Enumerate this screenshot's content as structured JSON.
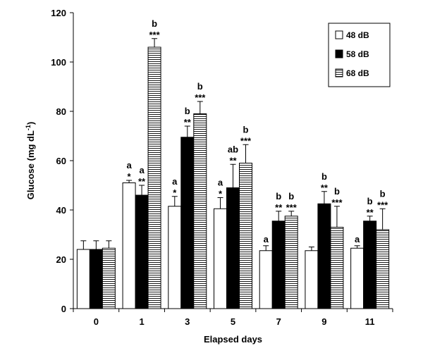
{
  "chart_data": {
    "type": "bar",
    "title": "",
    "xlabel": "Elapsed days",
    "ylabel": "Glucose (mg dL",
    "ylabel_superscript": "-1",
    "ylabel_close": ")",
    "ylim": [
      0,
      120
    ],
    "yticks": [
      0,
      20,
      40,
      60,
      80,
      100,
      120
    ],
    "categories": [
      "0",
      "1",
      "3",
      "5",
      "7",
      "9",
      "11"
    ],
    "series": [
      {
        "name": "48 dB",
        "fill": "white",
        "values": [
          24,
          51,
          41.5,
          40.5,
          23.5,
          23.5,
          24.5
        ],
        "errors": [
          3.5,
          1,
          4,
          4.5,
          2,
          1.5,
          1
        ],
        "letters": [
          "",
          "a",
          "a",
          "a",
          "a",
          "",
          "a"
        ],
        "stars": [
          "",
          "*",
          "*",
          "*",
          "",
          "",
          ""
        ]
      },
      {
        "name": "58 dB",
        "fill": "black",
        "values": [
          24,
          46,
          69.5,
          49,
          35.5,
          42.5,
          35.5
        ],
        "errors": [
          3.5,
          4,
          4.5,
          9.5,
          4,
          5,
          2
        ],
        "letters": [
          "",
          "a",
          "b",
          "ab",
          "b",
          "b",
          "b"
        ],
        "stars": [
          "",
          "**",
          "**",
          "**",
          "**",
          "**",
          "**"
        ]
      },
      {
        "name": "68 dB",
        "fill": "hatched",
        "values": [
          24.5,
          106,
          79,
          59,
          37.5,
          33,
          32
        ],
        "errors": [
          3,
          3.5,
          5,
          7.5,
          2,
          8.5,
          8.5
        ],
        "letters": [
          "",
          "b",
          "b",
          "b",
          "b",
          "b",
          "b"
        ],
        "stars": [
          "",
          "***",
          "***",
          "***",
          "***",
          "***",
          "***"
        ]
      }
    ],
    "legend_position": "top-right"
  }
}
